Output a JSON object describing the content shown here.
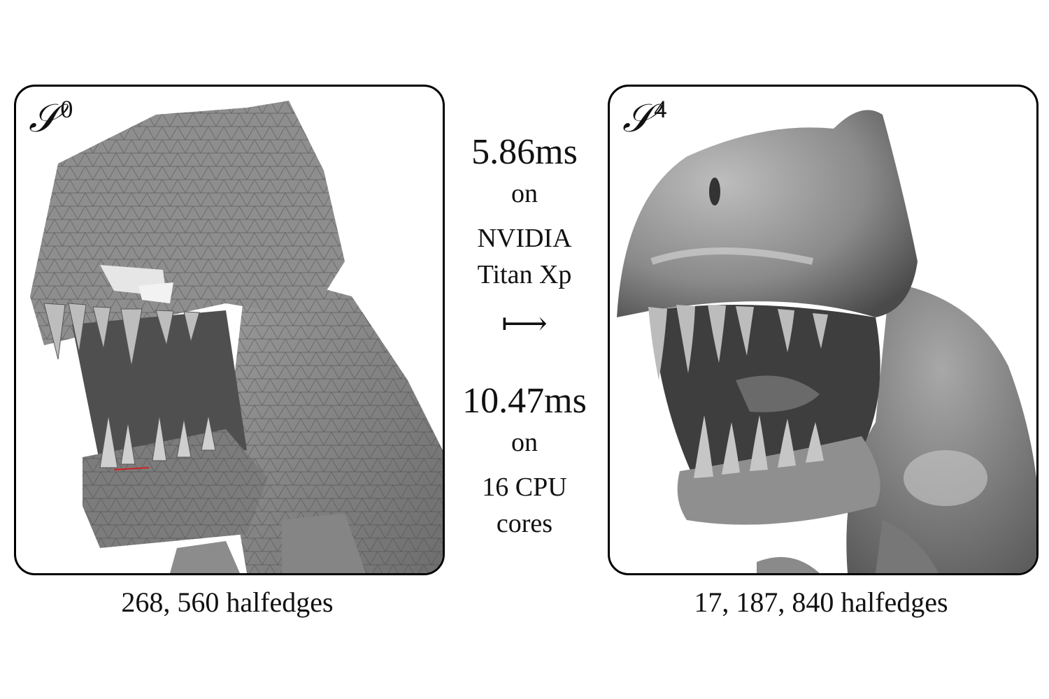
{
  "left_panel": {
    "symbol": "𝒮",
    "superscript": "0",
    "caption": "268, 560 halfedges"
  },
  "right_panel": {
    "symbol": "𝒮",
    "superscript": "4",
    "caption": "17, 187, 840 halfedges"
  },
  "middle": {
    "gpu_time": "5.86ms",
    "gpu_on": "on",
    "gpu_name_line1": "NVIDIA",
    "gpu_name_line2": "Titan Xp",
    "arrow": "⟼",
    "cpu_time": "10.47ms",
    "cpu_on": "on",
    "cpu_line1": "16 CPU",
    "cpu_line2": "cores"
  }
}
